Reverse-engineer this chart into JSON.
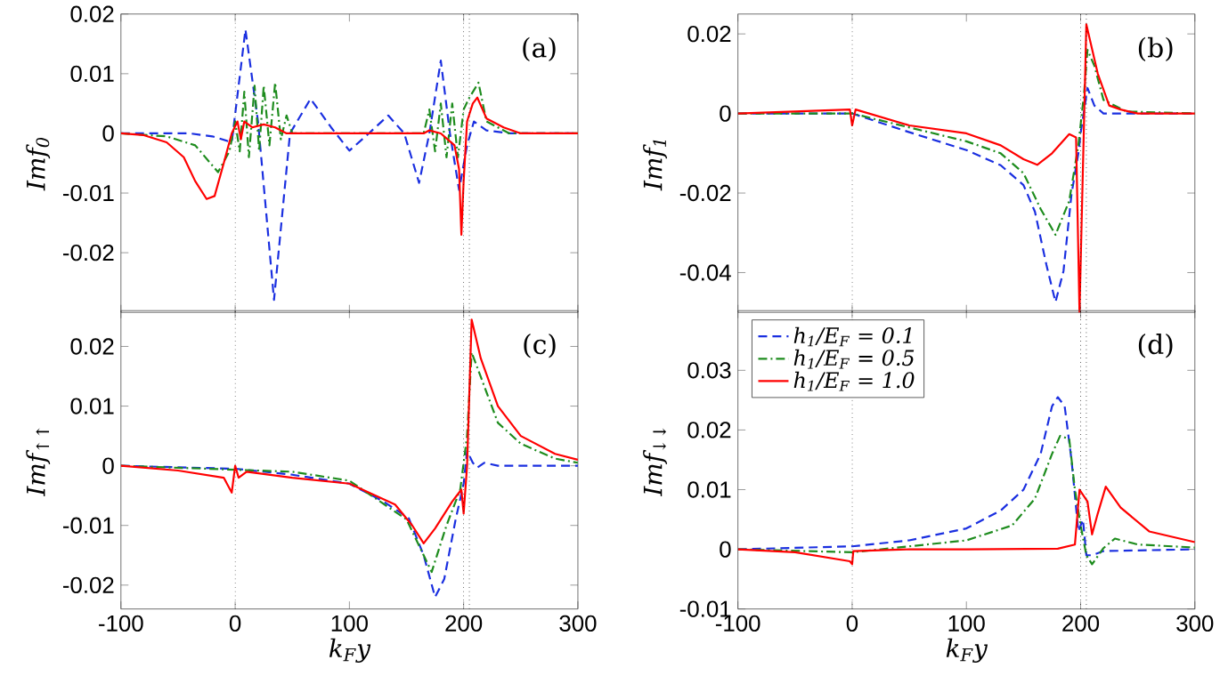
{
  "chart_data": [
    {
      "type": "line",
      "ylabel": "Imf$_{0}$",
      "xlim": [
        -100,
        300
      ],
      "xticks": [
        -100,
        0,
        100,
        200,
        300
      ],
      "ylim": [
        -0.03,
        0.02
      ],
      "yticks": [
        -0.02,
        -0.01,
        0,
        0.01,
        0.02
      ],
      "tick_labels": "y",
      "annotations": [
        "(a)"
      ],
      "ref_lines": [
        {
          "axis": "x",
          "value": 0,
          "color": "#000000",
          "line_style": "dotted"
        },
        {
          "axis": "x",
          "value": 200,
          "color": "#000000",
          "line_style": "dotted"
        },
        {
          "axis": "x",
          "value": 205,
          "color": "#000000",
          "line_style": "dotted"
        }
      ],
      "series": [
        {
          "color": "#1a2fe0",
          "line_style": "dashed",
          "x": [
            -100,
            -40,
            -20,
            -3,
            9,
            20,
            34,
            48,
            66,
            84,
            100,
            117,
            134,
            148,
            161,
            170,
            180,
            188,
            196,
            203,
            209,
            220,
            240,
            300
          ],
          "values": [
            0,
            0,
            -0.0005,
            -0.0015,
            0.0174,
            0.002,
            -0.0279,
            0,
            0.0058,
            0.001,
            -0.0029,
            0,
            0.003,
            0,
            -0.0083,
            0,
            0.0122,
            0,
            -0.0095,
            -0.002,
            0.002,
            0.0005,
            0,
            0
          ]
        },
        {
          "color": "#1e8c1e",
          "line_style": "dashdot",
          "x": [
            -100,
            -60,
            -35,
            -15,
            -5,
            0,
            4,
            8,
            12,
            17,
            21,
            25,
            30,
            35,
            40,
            45,
            50,
            165,
            170,
            175,
            180,
            185,
            190,
            195,
            200,
            205,
            213,
            220,
            240,
            300
          ],
          "values": [
            0,
            -0.0005,
            -0.002,
            -0.0065,
            -0.003,
            0.002,
            -0.003,
            0.007,
            -0.004,
            0.008,
            -0.003,
            0.008,
            -0.002,
            0.0085,
            -0.001,
            0.003,
            0,
            0,
            0.004,
            -0.003,
            0.005,
            -0.004,
            0.005,
            -0.004,
            0.004,
            0.006,
            0.0085,
            0.002,
            0,
            0
          ]
        },
        {
          "color": "#ff0000",
          "line_style": "solid",
          "x": [
            -100,
            -80,
            -60,
            -45,
            -35,
            -25,
            -18,
            -10,
            -3,
            2,
            5,
            8,
            15,
            25,
            35,
            45,
            165,
            170,
            180,
            192,
            196,
            198,
            200,
            203,
            208,
            212,
            220,
            235,
            250,
            300
          ],
          "values": [
            0,
            -0.0003,
            -0.0015,
            -0.004,
            -0.008,
            -0.011,
            -0.0105,
            -0.005,
            0,
            0.002,
            -0.001,
            0.002,
            0.001,
            0.0015,
            0.001,
            0,
            0,
            0.0005,
            0,
            -0.002,
            -0.006,
            -0.017,
            -0.008,
            0.002,
            0.005,
            0.006,
            0.0025,
            0.001,
            0,
            0
          ]
        }
      ]
    },
    {
      "type": "line",
      "ylabel": "Imf$_{1}$",
      "xlim": [
        -100,
        300
      ],
      "xticks": [
        -100,
        0,
        100,
        200,
        300
      ],
      "ylim": [
        -0.05,
        0.025
      ],
      "yticks": [
        -0.04,
        -0.02,
        0,
        0.02
      ],
      "tick_labels": "y",
      "annotations": [
        "(b)"
      ],
      "ref_lines": [
        {
          "axis": "x",
          "value": 0,
          "color": "#000000",
          "line_style": "dotted"
        },
        {
          "axis": "x",
          "value": 200,
          "color": "#000000",
          "line_style": "dotted"
        },
        {
          "axis": "x",
          "value": 205,
          "color": "#000000",
          "line_style": "dotted"
        }
      ],
      "series": [
        {
          "color": "#1a2fe0",
          "line_style": "dashed",
          "x": [
            -100,
            0,
            50,
            100,
            130,
            150,
            160,
            170,
            178,
            185,
            192,
            198,
            200,
            206,
            212,
            220,
            300
          ],
          "values": [
            0,
            0,
            -0.0047,
            -0.0092,
            -0.013,
            -0.018,
            -0.0247,
            -0.038,
            -0.0474,
            -0.0396,
            -0.0203,
            -0.01,
            -0.005,
            0.0064,
            0.002,
            0,
            0
          ]
        },
        {
          "color": "#1e8c1e",
          "line_style": "dashdot",
          "x": [
            -100,
            0,
            50,
            100,
            130,
            150,
            165,
            178,
            190,
            198,
            203,
            206,
            212,
            220,
            240,
            300
          ],
          "values": [
            0,
            0,
            -0.0035,
            -0.007,
            -0.01,
            -0.015,
            -0.024,
            -0.0305,
            -0.022,
            -0.008,
            0.005,
            0.016,
            0.012,
            0.0034,
            0.0005,
            0
          ]
        },
        {
          "color": "#ff0000",
          "line_style": "solid",
          "x": [
            -100,
            -2,
            0,
            3,
            50,
            100,
            130,
            150,
            162,
            175,
            190,
            196,
            199,
            205,
            215,
            225,
            235,
            250,
            300
          ],
          "values": [
            0,
            0.001,
            -0.003,
            0.001,
            -0.003,
            -0.005,
            -0.008,
            -0.0115,
            -0.0129,
            -0.01,
            -0.0052,
            -0.006,
            -0.05,
            0.0224,
            0.01,
            0.002,
            0.001,
            0,
            0
          ]
        }
      ]
    },
    {
      "type": "line",
      "ylabel": "Imf$_{↑↑}$",
      "xlabel": "k$_{F}$y",
      "xlim": [
        -100,
        300
      ],
      "xticks": [
        -100,
        0,
        100,
        200,
        300
      ],
      "ylim": [
        -0.024,
        0.026
      ],
      "yticks": [
        -0.02,
        -0.01,
        0,
        0.01,
        0.02
      ],
      "annotations": [
        "(c)"
      ],
      "ref_lines": [
        {
          "axis": "x",
          "value": 0,
          "color": "#000000",
          "line_style": "dotted"
        },
        {
          "axis": "x",
          "value": 200,
          "color": "#000000",
          "line_style": "dotted"
        },
        {
          "axis": "x",
          "value": 205,
          "color": "#000000",
          "line_style": "dotted"
        }
      ],
      "series": [
        {
          "color": "#1a2fe0",
          "line_style": "dashed",
          "x": [
            -100,
            0,
            50,
            100,
            130,
            152,
            165,
            175,
            183,
            193,
            200,
            203,
            208,
            212,
            218,
            230,
            300
          ],
          "values": [
            0,
            -0.0005,
            -0.0015,
            -0.003,
            -0.006,
            -0.0088,
            -0.015,
            -0.022,
            -0.019,
            -0.009,
            -0.003,
            0.0025,
            0.0005,
            -0.0003,
            0.0005,
            0,
            0
          ]
        },
        {
          "color": "#1e8c1e",
          "line_style": "dashdot",
          "x": [
            -100,
            50,
            100,
            150,
            165,
            172,
            185,
            197,
            203,
            207,
            230,
            250,
            280,
            300
          ],
          "values": [
            0,
            -0.001,
            -0.0025,
            -0.009,
            -0.015,
            -0.0178,
            -0.01,
            -0.004,
            0.005,
            0.019,
            0.0072,
            0.0037,
            0.0012,
            0.0005
          ]
        },
        {
          "color": "#ff0000",
          "line_style": "solid",
          "x": [
            -100,
            -50,
            -10,
            -3,
            0,
            3,
            10,
            50,
            100,
            140,
            155,
            165,
            175,
            190,
            198,
            200,
            203,
            207,
            215,
            230,
            250,
            280,
            300
          ],
          "values": [
            0,
            -0.0008,
            -0.002,
            -0.0045,
            0,
            -0.002,
            -0.001,
            -0.002,
            -0.003,
            -0.0065,
            -0.01,
            -0.013,
            -0.0105,
            -0.006,
            -0.004,
            -0.008,
            0,
            0.0245,
            0.018,
            0.01,
            0.005,
            0.002,
            0.001
          ]
        }
      ]
    },
    {
      "type": "line",
      "ylabel": "Imf$_{↓↓}$",
      "xlabel": "k$_{F}$y",
      "xlim": [
        -100,
        300
      ],
      "xticks": [
        -100,
        0,
        100,
        200,
        300
      ],
      "ylim": [
        -0.01,
        0.04
      ],
      "yticks": [
        -0.01,
        0,
        0.01,
        0.02,
        0.03
      ],
      "annotations": [
        "(d)"
      ],
      "legend": "top left",
      "ref_lines": [
        {
          "axis": "x",
          "value": 0,
          "color": "#000000",
          "line_style": "dotted"
        },
        {
          "axis": "x",
          "value": 200,
          "color": "#000000",
          "line_style": "dotted"
        },
        {
          "axis": "x",
          "value": 205,
          "color": "#000000",
          "line_style": "dotted"
        }
      ],
      "series": [
        {
          "name": "h$_{1}$/E$_{F}$ = 0.1",
          "color": "#1a2fe0",
          "line_style": "dashed",
          "x": [
            -100,
            0,
            50,
            100,
            130,
            150,
            165,
            175,
            180,
            186,
            192,
            198,
            202,
            205,
            210,
            220,
            300
          ],
          "values": [
            0,
            0.0005,
            0.0015,
            0.0035,
            0.0065,
            0.01,
            0.016,
            0.024,
            0.0255,
            0.024,
            0.015,
            0.003,
            0.005,
            -0.001,
            -0.001,
            -0.0003,
            0
          ]
        },
        {
          "name": "h$_{1}$/E$_{F}$ = 0.5",
          "color": "#1e8c1e",
          "line_style": "dashdot",
          "x": [
            -100,
            0,
            50,
            100,
            140,
            160,
            175,
            182,
            190,
            195,
            200,
            205,
            210,
            220,
            230,
            250,
            300
          ],
          "values": [
            0,
            -0.0005,
            0.0005,
            0.0015,
            0.004,
            0.0085,
            0.016,
            0.019,
            0.0185,
            0.01,
            0.004,
            -0.001,
            -0.0025,
            0.0002,
            0.0018,
            0.0008,
            0.0003
          ]
        },
        {
          "name": "h$_{1}$/E$_{F}$ = 1.0",
          "color": "#ff0000",
          "line_style": "solid",
          "x": [
            -100,
            -50,
            -2,
            0,
            1,
            50,
            100,
            180,
            195,
            199,
            201,
            204,
            206,
            210,
            215,
            222,
            235,
            260,
            300
          ],
          "values": [
            0,
            -0.0005,
            -0.002,
            -0.0025,
            -0.0003,
            0,
            0,
            0.0001,
            0.0008,
            0.01,
            null,
            null,
            0.008,
            0.0025,
            0.006,
            0.0105,
            0.007,
            0.003,
            0.0012
          ]
        }
      ]
    }
  ]
}
